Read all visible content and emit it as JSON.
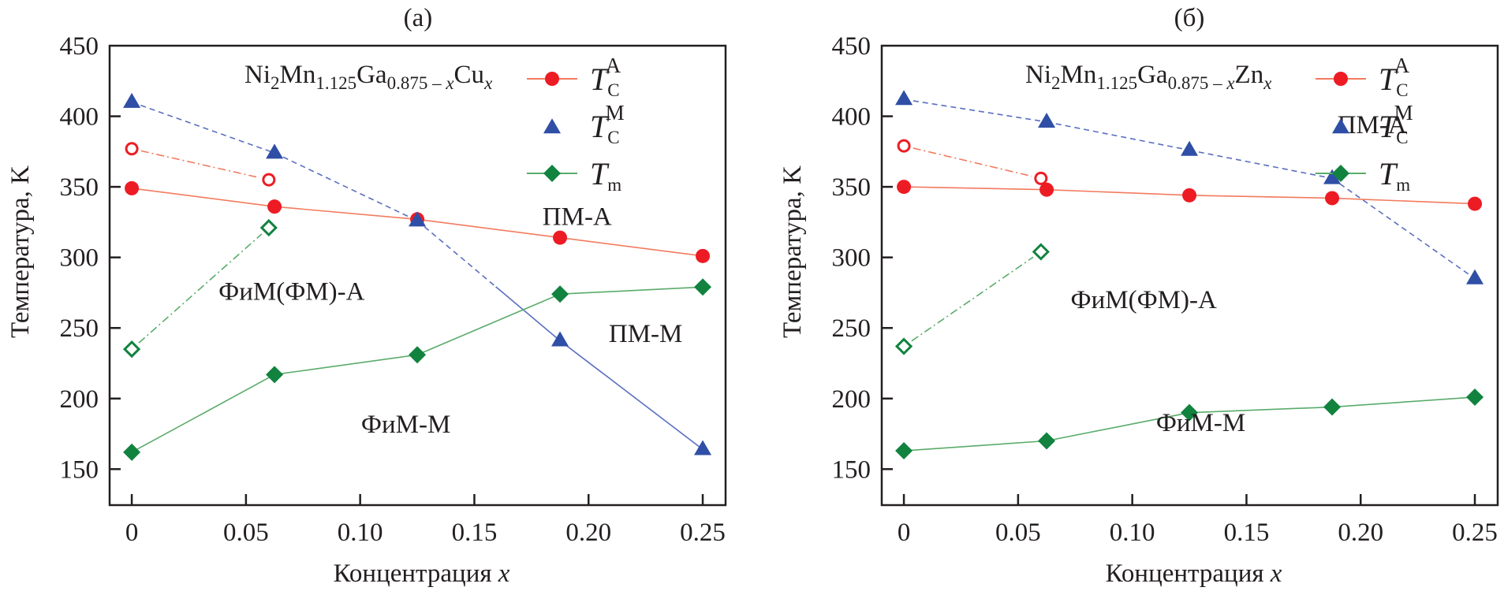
{
  "chart_data": [
    {
      "type": "line",
      "panel_label": "(a)",
      "formula": {
        "parts": [
          {
            "text": "Ni",
            "style": "normal"
          },
          {
            "text": "2",
            "style": "sub"
          },
          {
            "text": "Mn",
            "style": "normal"
          },
          {
            "text": "1.125",
            "style": "sub"
          },
          {
            "text": "Ga",
            "style": "normal"
          },
          {
            "text": "0.875 – ",
            "style": "sub"
          },
          {
            "text": "x",
            "style": "sub-italic"
          },
          {
            "text": "Cu",
            "style": "normal"
          },
          {
            "text": "x",
            "style": "sub-italic"
          }
        ]
      },
      "xlabel": "Концентрация",
      "xlabel_var": "x",
      "ylabel": "Температура, K",
      "xlim": [
        -0.0097,
        0.26
      ],
      "ylim": [
        124.5,
        450
      ],
      "xticks": [
        0,
        0.05,
        0.1,
        0.15,
        0.2,
        0.25
      ],
      "xtick_labels": [
        "0",
        "0.05",
        "0.10",
        "0.15",
        "0.20",
        "0.25"
      ],
      "yticks": [
        150,
        200,
        250,
        300,
        350,
        400,
        450
      ],
      "ytick_labels": [
        "150",
        "200",
        "250",
        "300",
        "350",
        "400",
        "450"
      ],
      "grid": false,
      "legend_position": "top-right",
      "legend": [
        {
          "key": "TCA",
          "symbol": "T",
          "sub": "C",
          "sup": "A",
          "marker": "circle",
          "line": true
        },
        {
          "key": "TCM",
          "symbol": "T",
          "sub": "C",
          "sup": "M",
          "marker": "triangle",
          "line": false
        },
        {
          "key": "Tm",
          "symbol": "T",
          "sub": "m",
          "sup": "",
          "marker": "diamond",
          "line": true
        }
      ],
      "series": [
        {
          "name": "T_C^A",
          "key": "TCA",
          "marker": "circle",
          "filled": true,
          "line_style": "solid",
          "color": "#ed1c24",
          "line_color": "#f27b5f",
          "x": [
            0,
            0.0625,
            0.125,
            0.1875,
            0.25
          ],
          "y": [
            349,
            336,
            327,
            314,
            301
          ]
        },
        {
          "name": "T_C^A (open)",
          "key": "TCA_open",
          "marker": "circle",
          "filled": false,
          "line_style": "dashdot",
          "color": "#ed1c24",
          "line_color": "#f27b5f",
          "x": [
            0,
            0.06
          ],
          "y": [
            377,
            355
          ]
        },
        {
          "name": "T_C^M",
          "key": "TCM",
          "marker": "triangle",
          "filled": true,
          "line_style": "dashed-then-solid",
          "solid_from_index": 3,
          "color": "#2f4fa6",
          "line_color": "#5a6fc0",
          "x": [
            0,
            0.0625,
            0.125,
            0.1875,
            0.25
          ],
          "y": [
            410,
            374,
            326,
            241,
            164
          ]
        },
        {
          "name": "T_m",
          "key": "Tm",
          "marker": "diamond",
          "filled": true,
          "line_style": "solid",
          "color": "#11833f",
          "line_color": "#5aab6a",
          "x": [
            0,
            0.0625,
            0.125,
            0.1875,
            0.25
          ],
          "y": [
            162,
            217,
            231,
            274,
            279
          ]
        },
        {
          "name": "T_m (open)",
          "key": "Tm_open",
          "marker": "diamond",
          "filled": false,
          "line_style": "dashdot",
          "color": "#11833f",
          "line_color": "#5aab6a",
          "x": [
            0,
            0.06
          ],
          "y": [
            235,
            321
          ]
        }
      ],
      "annotations": [
        {
          "text": "ПМ-А",
          "x": 0.195,
          "y": 323
        },
        {
          "text": "ФиМ(ФМ)-А",
          "x": 0.07,
          "y": 270
        },
        {
          "text": "ПМ-М",
          "x": 0.225,
          "y": 240
        },
        {
          "text": "ФиМ-М",
          "x": 0.12,
          "y": 176
        }
      ]
    },
    {
      "type": "line",
      "panel_label": "(б)",
      "formula": {
        "parts": [
          {
            "text": "Ni",
            "style": "normal"
          },
          {
            "text": "2",
            "style": "sub"
          },
          {
            "text": "Mn",
            "style": "normal"
          },
          {
            "text": "1.125",
            "style": "sub"
          },
          {
            "text": "Ga",
            "style": "normal"
          },
          {
            "text": "0.875 – ",
            "style": "sub"
          },
          {
            "text": "x",
            "style": "sub-italic"
          },
          {
            "text": "Zn",
            "style": "normal"
          },
          {
            "text": "x",
            "style": "sub-italic"
          }
        ]
      },
      "xlabel": "Концентрация",
      "xlabel_var": "x",
      "ylabel": "Температура, K",
      "xlim": [
        -0.0097,
        0.26
      ],
      "ylim": [
        124.5,
        450
      ],
      "xticks": [
        0,
        0.05,
        0.1,
        0.15,
        0.2,
        0.25
      ],
      "xtick_labels": [
        "0",
        "0.05",
        "0.10",
        "0.15",
        "0.20",
        "0.25"
      ],
      "yticks": [
        150,
        200,
        250,
        300,
        350,
        400,
        450
      ],
      "ytick_labels": [
        "150",
        "200",
        "250",
        "300",
        "350",
        "400",
        "450"
      ],
      "grid": false,
      "legend_position": "top-right",
      "legend": [
        {
          "key": "TCA",
          "symbol": "T",
          "sub": "C",
          "sup": "A",
          "marker": "circle",
          "line": true
        },
        {
          "key": "TCM",
          "symbol": "T",
          "sub": "C",
          "sup": "M",
          "marker": "triangle",
          "line": false
        },
        {
          "key": "Tm",
          "symbol": "T",
          "sub": "m",
          "sup": "",
          "marker": "diamond",
          "line": true
        }
      ],
      "series": [
        {
          "name": "T_C^A",
          "key": "TCA",
          "marker": "circle",
          "filled": true,
          "line_style": "solid",
          "color": "#ed1c24",
          "line_color": "#f27b5f",
          "x": [
            0,
            0.0625,
            0.125,
            0.1875,
            0.25
          ],
          "y": [
            350,
            348,
            344,
            342,
            338
          ]
        },
        {
          "name": "T_C^A (open)",
          "key": "TCA_open",
          "marker": "circle",
          "filled": false,
          "line_style": "dashdot",
          "color": "#ed1c24",
          "line_color": "#f27b5f",
          "x": [
            0,
            0.06
          ],
          "y": [
            379,
            356
          ]
        },
        {
          "name": "T_C^M",
          "key": "TCM",
          "marker": "triangle",
          "filled": true,
          "line_style": "dashed",
          "solid_from_index": 99,
          "color": "#2f4fa6",
          "line_color": "#5a6fc0",
          "x": [
            0,
            0.0625,
            0.125,
            0.1875,
            0.25
          ],
          "y": [
            412,
            396,
            376,
            356,
            285
          ]
        },
        {
          "name": "T_m",
          "key": "Tm",
          "marker": "diamond",
          "filled": true,
          "line_style": "solid",
          "color": "#11833f",
          "line_color": "#5aab6a",
          "x": [
            0,
            0.0625,
            0.125,
            0.1875,
            0.25
          ],
          "y": [
            163,
            170,
            190,
            194,
            201
          ]
        },
        {
          "name": "T_m (open)",
          "key": "Tm_open",
          "marker": "diamond",
          "filled": false,
          "line_style": "dashdot",
          "color": "#11833f",
          "line_color": "#5aab6a",
          "x": [
            0,
            0.06
          ],
          "y": [
            237,
            304
          ]
        }
      ],
      "annotations": [
        {
          "text": "ПМ-А",
          "x": 0.205,
          "y": 388
        },
        {
          "text": "ФиМ(ФМ)-А",
          "x": 0.105,
          "y": 264
        },
        {
          "text": "ФиМ-М",
          "x": 0.13,
          "y": 177
        }
      ]
    }
  ]
}
